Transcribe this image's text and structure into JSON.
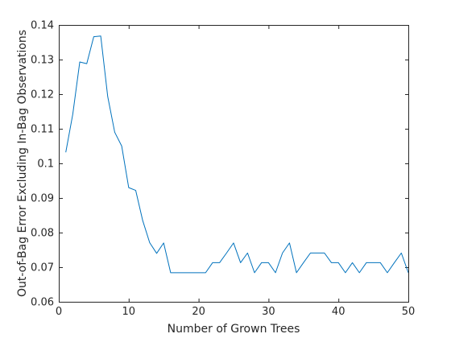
{
  "chart_data": {
    "type": "line",
    "title": "",
    "xlabel": "Number of Grown Trees",
    "ylabel": "Out-of-Bag Error Excluding In-Bag Observations",
    "xlim": [
      0,
      50
    ],
    "ylim": [
      0.06,
      0.14
    ],
    "xticks": [
      0,
      10,
      20,
      30,
      40,
      50
    ],
    "xtick_labels": [
      "0",
      "10",
      "20",
      "30",
      "40",
      "50"
    ],
    "yticks": [
      0.06,
      0.07,
      0.08,
      0.09,
      0.1,
      0.11,
      0.12,
      0.13,
      0.14
    ],
    "ytick_labels": [
      "0.06",
      "0.07",
      "0.08",
      "0.09",
      "0.1",
      "0.11",
      "0.12",
      "0.13",
      "0.14"
    ],
    "grid": false,
    "box": true,
    "series": [
      {
        "color": "#0072bd",
        "x": [
          1,
          2,
          3,
          4,
          5,
          6,
          7,
          8,
          9,
          10,
          11,
          12,
          13,
          14,
          15,
          16,
          17,
          18,
          19,
          20,
          21,
          22,
          23,
          24,
          25,
          26,
          27,
          28,
          29,
          30,
          31,
          32,
          33,
          34,
          35,
          36,
          37,
          38,
          39,
          40,
          41,
          42,
          43,
          44,
          45,
          46,
          47,
          48,
          49,
          50
        ],
        "y": [
          0.1032,
          0.1142,
          0.1293,
          0.1288,
          0.1366,
          0.1368,
          0.1193,
          0.109,
          0.105,
          0.093,
          0.0922,
          0.0835,
          0.0771,
          0.074,
          0.077,
          0.0684,
          0.0684,
          0.0684,
          0.0684,
          0.0684,
          0.0684,
          0.0713,
          0.0713,
          0.0741,
          0.077,
          0.0713,
          0.0741,
          0.0684,
          0.0713,
          0.0713,
          0.0684,
          0.0741,
          0.077,
          0.0684,
          0.0713,
          0.0741,
          0.0741,
          0.0741,
          0.0713,
          0.0713,
          0.0684,
          0.0713,
          0.0684,
          0.0713,
          0.0713,
          0.0713,
          0.0684,
          0.0713,
          0.0741,
          0.0684
        ]
      }
    ]
  }
}
